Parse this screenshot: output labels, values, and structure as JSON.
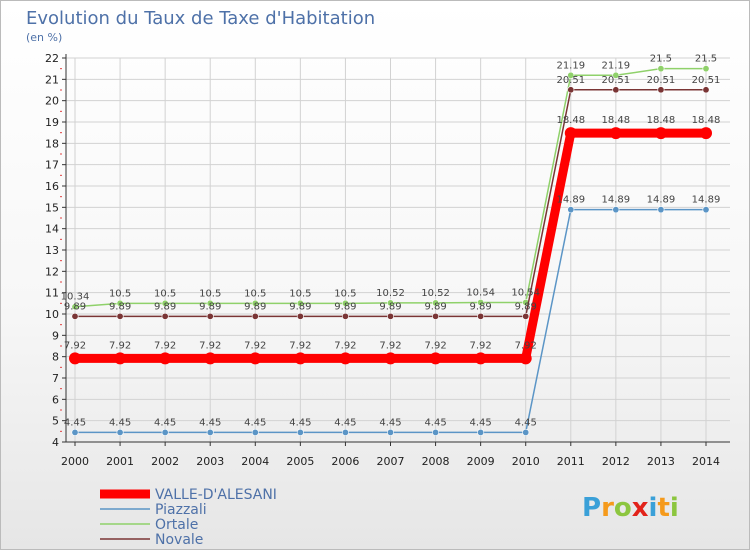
{
  "chart_data": {
    "type": "line",
    "title": "Evolution du Taux de Taxe d'Habitation",
    "subtitle": "(en %)",
    "x": [
      "2000",
      "2001",
      "2002",
      "2003",
      "2004",
      "2005",
      "2006",
      "2007",
      "2008",
      "2009",
      "2010",
      "2011",
      "2012",
      "2013",
      "2014"
    ],
    "ylim": [
      4,
      22
    ],
    "yticks": [
      "4",
      "5",
      "6",
      "7",
      "8",
      "9",
      "10",
      "11",
      "12",
      "13",
      "14",
      "15",
      "16",
      "17",
      "18",
      "19",
      "20",
      "21",
      "22"
    ],
    "grid": true,
    "legend_position": "bottom-left",
    "series": [
      {
        "name": "VALLE-D'ALESANI",
        "color": "#ff0000",
        "values": [
          7.92,
          7.92,
          7.92,
          7.92,
          7.92,
          7.92,
          7.92,
          7.92,
          7.92,
          7.92,
          7.92,
          18.48,
          18.48,
          18.48,
          18.48
        ],
        "labels": [
          "7.92",
          "7.92",
          "7.92",
          "7.92",
          "7.92",
          "7.92",
          "7.92",
          "7.92",
          "7.92",
          "7.92",
          "7.92",
          "18.48",
          "18.48",
          "18.48",
          "18.48"
        ]
      },
      {
        "name": "Piazzali",
        "color": "#5b95c6",
        "values": [
          4.45,
          4.45,
          4.45,
          4.45,
          4.45,
          4.45,
          4.45,
          4.45,
          4.45,
          4.45,
          4.45,
          14.89,
          14.89,
          14.89,
          14.89
        ],
        "labels": [
          "4.45",
          "4.45",
          "4.45",
          "4.45",
          "4.45",
          "4.45",
          "4.45",
          "4.45",
          "4.45",
          "4.45",
          "4.45",
          "14.89",
          "14.89",
          "14.89",
          "14.89"
        ]
      },
      {
        "name": "Ortale",
        "color": "#8fd16a",
        "values": [
          10.34,
          10.5,
          10.5,
          10.5,
          10.5,
          10.5,
          10.5,
          10.52,
          10.52,
          10.54,
          10.54,
          21.19,
          21.19,
          21.5,
          21.5
        ],
        "labels": [
          "10.34",
          "10.5",
          "10.5",
          "10.5",
          "10.5",
          "10.5",
          "10.5",
          "10.52",
          "10.52",
          "10.54",
          "10.54",
          "21.19",
          "21.19",
          "21.5",
          "21.5"
        ]
      },
      {
        "name": "Novale",
        "color": "#7a3535",
        "values": [
          9.89,
          9.89,
          9.89,
          9.89,
          9.89,
          9.89,
          9.89,
          9.89,
          9.89,
          9.89,
          9.89,
          20.51,
          20.51,
          20.51,
          20.51
        ],
        "labels": [
          "9.89",
          "9.89",
          "9.89",
          "9.89",
          "9.89",
          "9.89",
          "9.89",
          "9.89",
          "9.89",
          "9.89",
          "9.89",
          "20.51",
          "20.51",
          "20.51",
          "20.51"
        ]
      }
    ]
  },
  "logo": {
    "text": "Proxiti",
    "colors": [
      "#3aa0d8",
      "#f59a1b",
      "#8cc63f",
      "#e2231a"
    ]
  }
}
